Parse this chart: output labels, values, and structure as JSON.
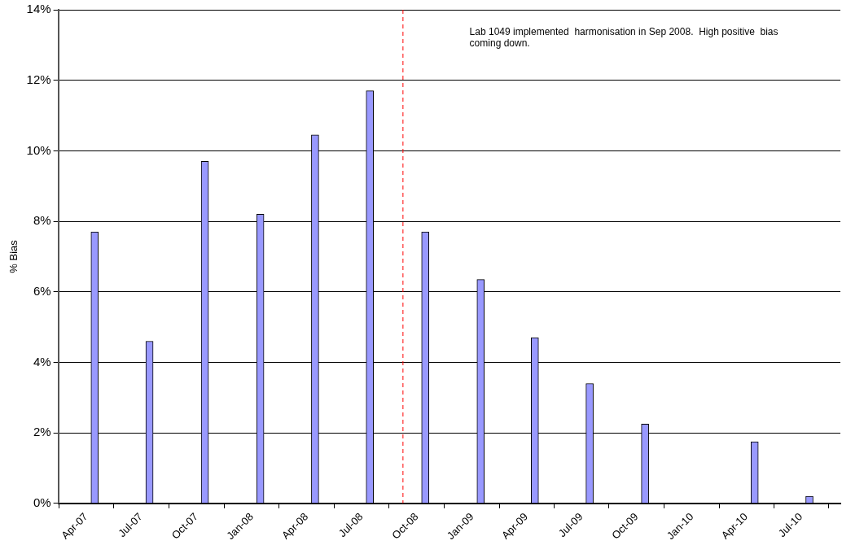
{
  "chart_data": {
    "type": "bar",
    "ylabel": "% Bias",
    "x": [
      "2007-04-15",
      "2007-07-15",
      "2007-10-15",
      "2008-01-15",
      "2008-04-15",
      "2008-07-15",
      "2008-10-15",
      "2009-01-15",
      "2009-04-15",
      "2009-07-15",
      "2009-10-15",
      "2010-04-15",
      "2010-07-15"
    ],
    "values": [
      7.7,
      4.6,
      9.7,
      8.2,
      10.45,
      11.7,
      7.7,
      6.35,
      4.7,
      3.4,
      2.25,
      1.75,
      0.2
    ],
    "color": "#9999ff",
    "xlim": [
      "2007-04-01",
      "2010-07-20"
    ],
    "xticks": [
      {
        "value": "2007-04-01",
        "label": "Apr-07"
      },
      {
        "value": "2007-07-01",
        "label": "Jul-07"
      },
      {
        "value": "2007-10-01",
        "label": "Oct-07"
      },
      {
        "value": "2008-01-01",
        "label": "Jan-08"
      },
      {
        "value": "2008-04-01",
        "label": "Apr-08"
      },
      {
        "value": "2008-07-01",
        "label": "Jul-08"
      },
      {
        "value": "2008-10-01",
        "label": "Oct-08"
      },
      {
        "value": "2009-01-01",
        "label": "Jan-09"
      },
      {
        "value": "2009-04-01",
        "label": "Apr-09"
      },
      {
        "value": "2009-07-01",
        "label": "Jul-09"
      },
      {
        "value": "2009-10-01",
        "label": "Oct-09"
      },
      {
        "value": "2010-01-01",
        "label": "Jan-10"
      },
      {
        "value": "2010-04-01",
        "label": "Apr-10"
      },
      {
        "value": "2010-07-01",
        "label": "Jul-10"
      }
    ],
    "ylim": [
      0,
      14
    ],
    "yticks": [
      {
        "value": 0,
        "label": "0%"
      },
      {
        "value": 2,
        "label": "2%"
      },
      {
        "value": 4,
        "label": "4%"
      },
      {
        "value": 6,
        "label": "6%"
      },
      {
        "value": 8,
        "label": "8%"
      },
      {
        "value": 10,
        "label": "10%"
      },
      {
        "value": 12,
        "label": "12%"
      },
      {
        "value": 14,
        "label": "14%"
      }
    ],
    "grid": "y",
    "legend": false,
    "ref_lines": [
      {
        "axis": "x",
        "value": "2008-09-08",
        "color": "#ff0000",
        "line_style": "dashed"
      }
    ],
    "annotations": [
      "Lab 1049 implemented  harmonisation in Sep 2008.  High positive  bias coming down."
    ]
  }
}
